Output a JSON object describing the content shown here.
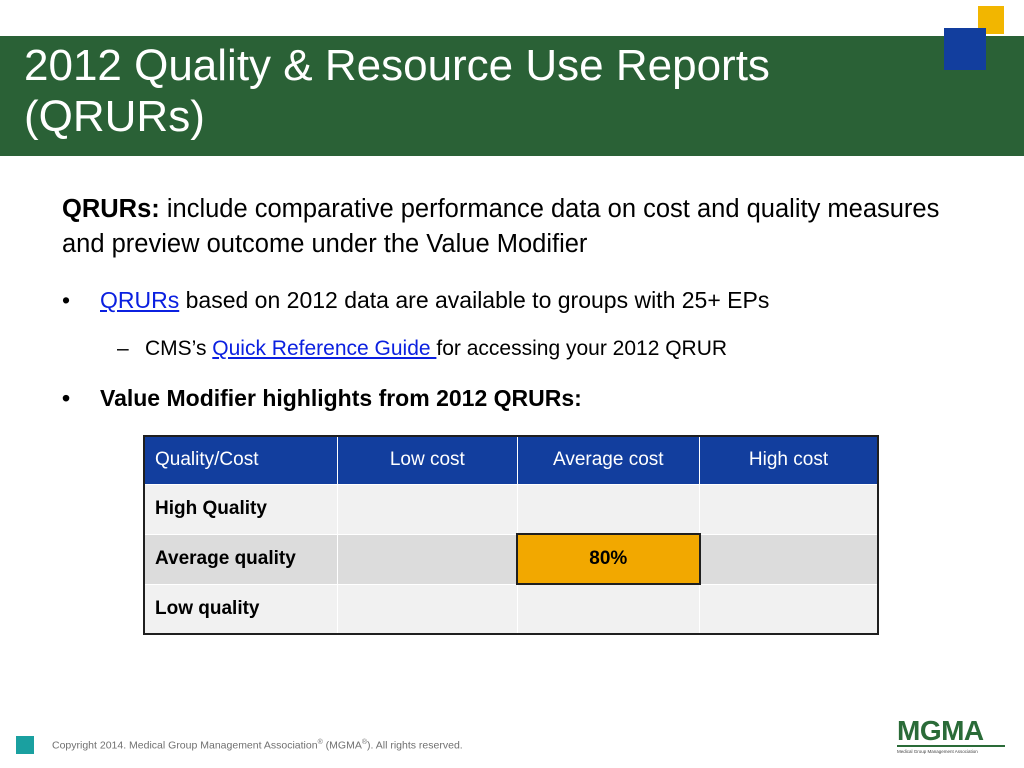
{
  "title": {
    "line1": "2012 Quality & Resource Use Reports",
    "line2": "(QRURs)"
  },
  "intro": {
    "term": "QRURs:",
    "text": " include comparative performance data on cost and quality measures and preview outcome under the Value Modifier"
  },
  "bullets": {
    "b1": {
      "marker": "•",
      "link": "QRURs",
      "text": " based on 2012 data are available to groups with 25+ EPs"
    },
    "b2": {
      "marker": "–",
      "prefix": "CMS’s ",
      "link": "Quick Reference Guide ",
      "text": "for accessing your 2012 QRUR"
    },
    "b3": {
      "marker": "•",
      "text": "Value Modifier highlights from 2012 QRURs:"
    }
  },
  "table": {
    "headers": [
      "Quality/Cost",
      "Low cost",
      "Average cost",
      "High cost"
    ],
    "rows": [
      {
        "label": "High Quality",
        "cells": [
          "",
          "",
          ""
        ]
      },
      {
        "label": "Average quality",
        "cells": [
          "",
          "80%",
          ""
        ]
      },
      {
        "label": "Low quality",
        "cells": [
          "",
          "",
          ""
        ]
      }
    ]
  },
  "footer": {
    "copyright_pre": "Copyright 2014. Medical Group Management Association",
    "reg1": "®",
    "copyright_mid": " (MGMA",
    "reg2": "®",
    "copyright_post": "). All rights reserved."
  },
  "colors": {
    "band": "#2a6136",
    "header": "#123e9e",
    "highlight": "#f2a800",
    "link": "#0b20e0"
  },
  "logo": {
    "word": "MGMA",
    "sub": "Medical Group Management Association"
  }
}
